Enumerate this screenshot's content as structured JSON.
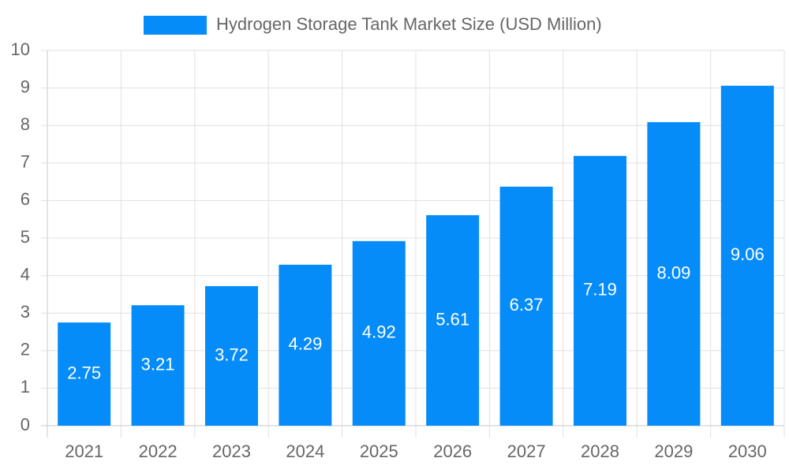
{
  "chart_data": {
    "type": "bar",
    "categories": [
      "2021",
      "2022",
      "2023",
      "2024",
      "2025",
      "2026",
      "2027",
      "2028",
      "2029",
      "2030"
    ],
    "series": [
      {
        "name": "Hydrogen Storage Tank Market Size (USD Million)",
        "color": "#058cf9",
        "values": [
          2.75,
          3.21,
          3.72,
          4.29,
          4.92,
          5.61,
          6.37,
          7.19,
          8.09,
          9.06
        ]
      }
    ],
    "ylim": [
      0,
      10
    ],
    "yticks": [
      0,
      1,
      2,
      3,
      4,
      5,
      6,
      7,
      8,
      9,
      10
    ],
    "grid": true,
    "legend": "top"
  }
}
